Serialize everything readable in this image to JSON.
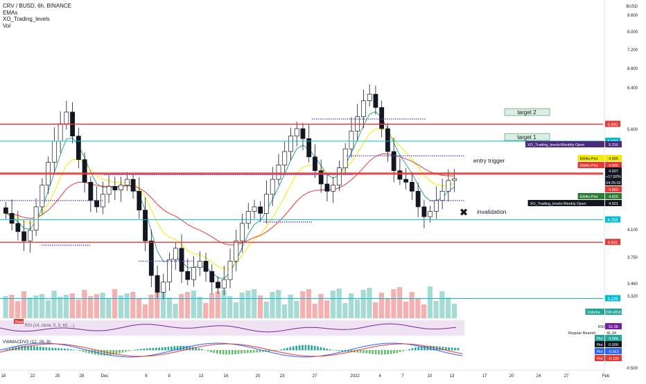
{
  "chart_data": {
    "type": "candlestick",
    "symbol_header": "CRV / BUSD, 6h, BINANCE",
    "indicators_legend": [
      "EMAs",
      "XO_Trading_levels",
      "Vol"
    ],
    "currency": "BUSD",
    "price_axis": {
      "scale": "log",
      "ticks": [
        "8.600",
        "8.000",
        "7.200",
        "6.800",
        "6.400",
        "5.600",
        "4.100",
        "3.750",
        "3.460",
        "3.320",
        "-0.500"
      ]
    },
    "time_axis": {
      "labels": [
        "18",
        "22",
        "25",
        "28",
        "Dec",
        "6",
        "9",
        "13",
        "16",
        "20",
        "23",
        "27",
        "2022",
        "4",
        "7",
        "10",
        "13",
        "17",
        "20",
        "24",
        "27",
        "Feb"
      ]
    },
    "price_series_close_approx": [
      4.35,
      4.2,
      4.08,
      3.95,
      4.1,
      4.45,
      4.8,
      5.2,
      5.6,
      5.95,
      6.2,
      5.7,
      5.25,
      4.85,
      4.55,
      4.45,
      4.65,
      4.78,
      4.72,
      4.8,
      4.9,
      4.7,
      4.4,
      3.95,
      3.5,
      3.3,
      3.42,
      3.7,
      3.85,
      3.55,
      3.45,
      3.6,
      3.68,
      3.55,
      3.42,
      3.35,
      3.45,
      3.68,
      3.95,
      4.2,
      4.38,
      4.45,
      4.35,
      4.65,
      4.9,
      5.15,
      5.4,
      5.7,
      5.85,
      5.65,
      5.3,
      5.05,
      4.82,
      4.7,
      4.8,
      5.1,
      5.45,
      5.8,
      6.1,
      6.45,
      6.6,
      6.3,
      5.85,
      5.4,
      5.05,
      4.9,
      4.85,
      4.7,
      4.45,
      4.3,
      4.38,
      4.55,
      4.7,
      4.88,
      4.91
    ],
    "horizontal_levels": [
      {
        "kind": "red",
        "price": 5.942,
        "label": "5.942"
      },
      {
        "kind": "cyan",
        "price": 5.6,
        "label": "5.600"
      },
      {
        "kind": "red",
        "price": 5.009,
        "label": "5.009"
      },
      {
        "kind": "red",
        "price": 4.99,
        "label": "4.990"
      },
      {
        "kind": "cyan",
        "price": 4.253,
        "label": "4.253"
      },
      {
        "kind": "red",
        "price": 3.931,
        "label": "3.931"
      },
      {
        "kind": "cyan",
        "price": 3.229,
        "label": "3.229"
      }
    ],
    "price_tags": [
      {
        "label": "XO_Trading_levels:Monthly Open",
        "value": "5.316",
        "color": "#4a2a7a"
      },
      {
        "label": "EMAs:Plot",
        "value": "4.995",
        "color": "#f5e900"
      },
      {
        "label": "EMAs:Plot",
        "value": "4.990",
        "color": "#e53935"
      },
      {
        "label": "",
        "value": "4.907",
        "color": "#131722"
      },
      {
        "label": "",
        "value": "+17.82%",
        "color": "#131722"
      },
      {
        "label": "",
        "value": "04:25:02",
        "color": "#131722"
      },
      {
        "label": "",
        "value": "4.862",
        "color": "#e53935"
      },
      {
        "label": "EMAs:Plot",
        "value": "4.825",
        "color": "#2e7d32"
      },
      {
        "label": "XO_Trading_levels:Weekly Open",
        "value": "4.501",
        "color": "#131722"
      },
      {
        "label": "Volume",
        "value": "238.481K",
        "color": "#26a69a"
      }
    ],
    "annotations": [
      {
        "text": "target 2",
        "price": 5.942
      },
      {
        "text": "target 1",
        "price": 5.6
      },
      {
        "text": "entry trigger",
        "price": 5.05
      },
      {
        "text": "invalidation",
        "price": 4.3
      }
    ],
    "rsi": {
      "header": "RSI (14, close, 5, 5, 60, ...)",
      "label_tag": "Bear",
      "value_label": "RSI",
      "value": "51.06",
      "regular_bearish_label": "Regular Bearish",
      "regular_bearish_value": "41.34"
    },
    "macd": {
      "header": "VWMACDV2 (12, 26, 9)",
      "values": [
        {
          "label": "Plot",
          "value": "0.066",
          "color": "#26a69a"
        },
        {
          "label": "Plot",
          "value": "0.000",
          "color": "#131722"
        },
        {
          "label": "Plot",
          "value": "-0.063",
          "color": "#2962ff"
        },
        {
          "label": "Plot",
          "value": "-0.130",
          "color": "#e53935"
        }
      ]
    },
    "colors": {
      "up": "#ffffff",
      "down": "#131722",
      "ema_fast": "#26a69a",
      "ema_mid": "#f5e900",
      "ema_slow": "#e53935",
      "level_red": "#e53935",
      "level_cyan": "#00bcd4"
    }
  }
}
